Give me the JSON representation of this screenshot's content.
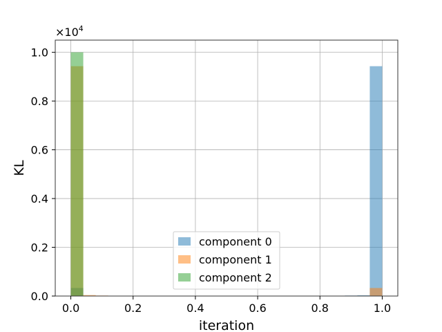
{
  "chart_data": {
    "type": "bar",
    "xlabel": "iteration",
    "ylabel": "KL",
    "y_scale_label": "×10",
    "y_scale_exponent": "4",
    "xlim": [
      -0.05,
      1.05
    ],
    "ylim": [
      0,
      10500
    ],
    "xticks": [
      0.0,
      0.2,
      0.4,
      0.6,
      0.8,
      1.0
    ],
    "xtick_labels": [
      "0.0",
      "0.2",
      "0.4",
      "0.6",
      "0.8",
      "1.0"
    ],
    "yticks": [
      0,
      2000,
      4000,
      6000,
      8000,
      10000
    ],
    "ytick_labels": [
      "0.0",
      "0.2",
      "0.4",
      "0.6",
      "0.8",
      "1.0"
    ],
    "grid": true,
    "legend_position": "bottom-center",
    "bin_width": 0.04,
    "series": [
      {
        "name": "component 0",
        "color": "#1f77b4",
        "bins": [
          {
            "x0": 0.0,
            "x1": 0.04,
            "value": 330
          },
          {
            "x0": 0.88,
            "x1": 0.92,
            "value": 20
          },
          {
            "x0": 0.92,
            "x1": 0.96,
            "value": 30
          },
          {
            "x0": 0.96,
            "x1": 1.0,
            "value": 9430
          }
        ]
      },
      {
        "name": "component 1",
        "color": "#ff7f0e",
        "bins": [
          {
            "x0": 0.0,
            "x1": 0.04,
            "value": 9430
          },
          {
            "x0": 0.04,
            "x1": 0.08,
            "value": 40
          },
          {
            "x0": 0.08,
            "x1": 0.12,
            "value": 20
          },
          {
            "x0": 0.96,
            "x1": 1.0,
            "value": 330
          }
        ]
      },
      {
        "name": "component 2",
        "color": "#2ca02c",
        "bins": [
          {
            "x0": 0.0,
            "x1": 0.04,
            "value": 10000
          }
        ]
      }
    ]
  }
}
